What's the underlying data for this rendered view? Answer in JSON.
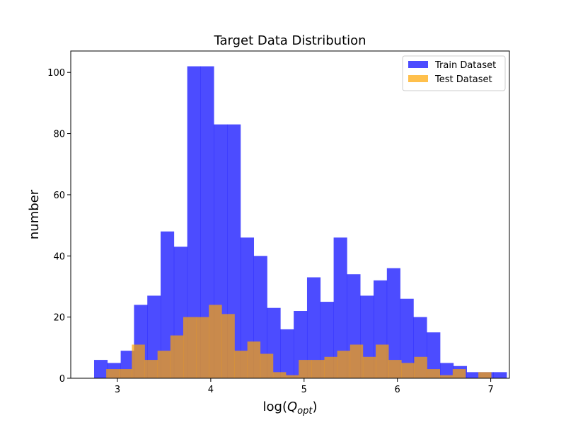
{
  "chart_data": {
    "type": "bar",
    "title": "Target Data Distribution",
    "xlabel": "log(Q_opt)",
    "ylabel": "number",
    "xlim": [
      2.5,
      7.2
    ],
    "ylim": [
      0,
      107
    ],
    "xticks": [
      3,
      4,
      5,
      6,
      7
    ],
    "yticks": [
      0,
      20,
      40,
      60,
      80,
      100
    ],
    "legend_position": "top-right",
    "series": [
      {
        "name": "Train Dataset",
        "color": "#0000ff",
        "opacity": 0.7,
        "bin_start": 2.75,
        "bin_width": 0.1426,
        "counts": [
          6,
          5,
          9,
          24,
          27,
          48,
          43,
          102,
          102,
          83,
          83,
          46,
          40,
          23,
          16,
          22,
          33,
          25,
          46,
          34,
          27,
          32,
          36,
          26,
          20,
          15,
          5,
          4,
          2,
          2,
          2
        ]
      },
      {
        "name": "Test Dataset",
        "color": "#ffa500",
        "opacity": 0.7,
        "bin_start": 2.88,
        "bin_width": 0.1375,
        "counts": [
          3,
          3,
          11,
          6,
          9,
          14,
          20,
          20,
          24,
          21,
          9,
          12,
          8,
          2,
          1,
          6,
          6,
          7,
          9,
          11,
          7,
          11,
          6,
          5,
          7,
          3,
          1,
          3,
          0,
          2
        ]
      }
    ]
  }
}
